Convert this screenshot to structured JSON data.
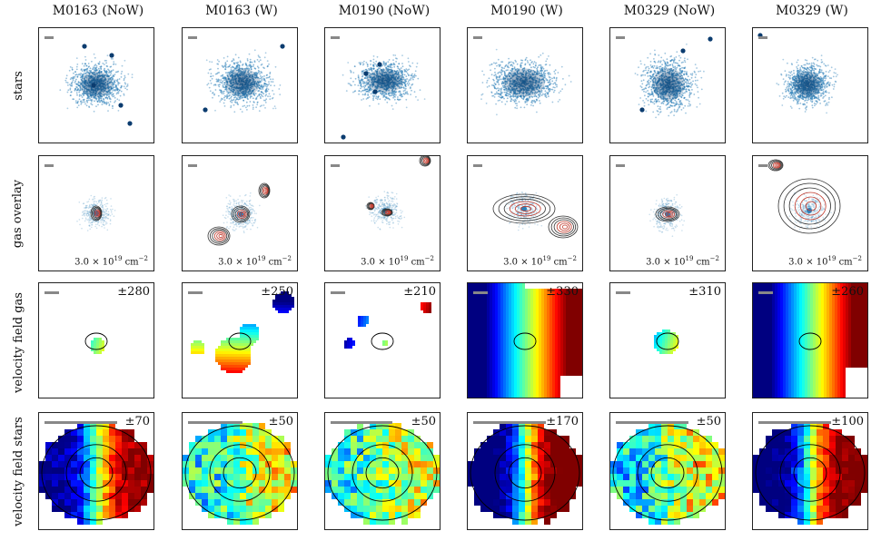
{
  "columns": [
    "M0163 (NoW)",
    "M0163 (W)",
    "M0190 (NoW)",
    "M0190 (W)",
    "M0329 (NoW)",
    "M0329 (W)"
  ],
  "rows": [
    "stars",
    "gas overlay",
    "velocity field gas",
    "velocity field stars"
  ],
  "gas_overlay_label": {
    "mant": "3.0 × 10",
    "exp": "19",
    "unit": " cm",
    "unit_exp": "−2"
  },
  "gas_velocity_limits": [
    "±280",
    "±250",
    "±210",
    "±330",
    "±310",
    "±260"
  ],
  "star_velocity_limits": [
    "±70",
    "±50",
    "±50",
    "±170",
    "±50",
    "±100"
  ],
  "colors": {
    "stars_map": "#2c7fb8",
    "contour_red": "#c0392b",
    "contour_dark": "#333333",
    "scalebar": "#888888"
  },
  "colormap": "jet"
}
